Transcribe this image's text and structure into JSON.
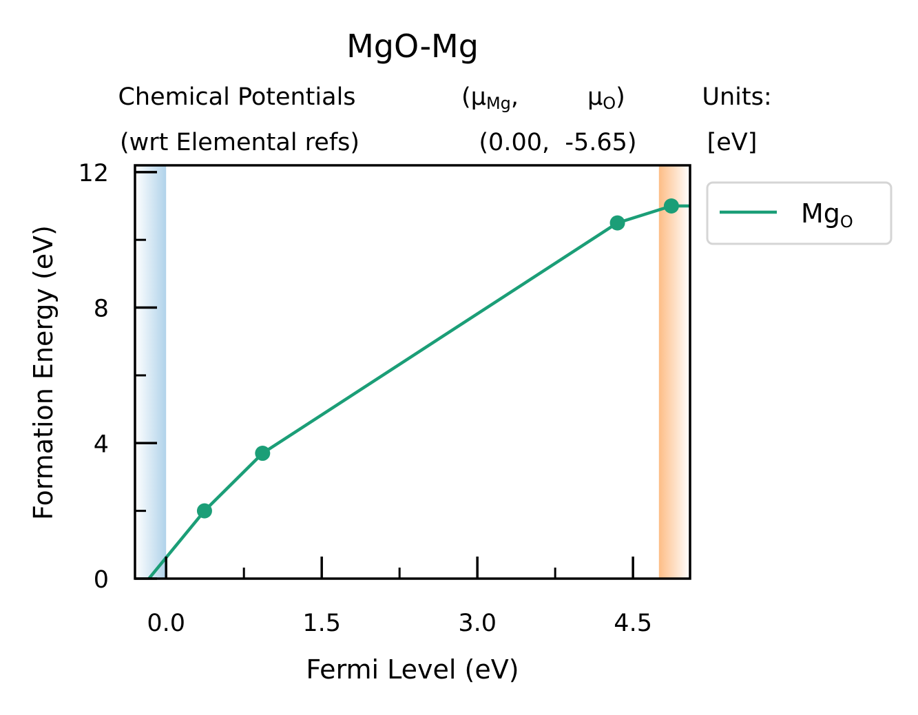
{
  "chart_data": {
    "type": "line",
    "title": "MgO-Mg",
    "header": {
      "left_line1": "Chemical Potentials",
      "left_line2": "(wrt Elemental refs)",
      "mu1_symbol": "μ",
      "mu1_sub": "Mg",
      "mu1_suffix": ",",
      "mu2_symbol": "μ",
      "mu2_sub": "O",
      "mu2_suffix": ")",
      "mu_open": "(",
      "values_line": "(0.00,  -5.65)",
      "units_line1": "Units:",
      "units_line2": "[eV]"
    },
    "xlabel": "Fermi Level (eV)",
    "ylabel": "Formation Energy (eV)",
    "xlim": [
      -0.3,
      5.05
    ],
    "ylim": [
      0,
      12.2
    ],
    "x_ticks": [
      {
        "value": 0.0,
        "label": "0.0"
      },
      {
        "value": 1.5,
        "label": "1.5"
      },
      {
        "value": 3.0,
        "label": "3.0"
      },
      {
        "value": 4.5,
        "label": "4.5"
      }
    ],
    "x_minor_ticks": [
      0.75,
      2.25,
      3.75
    ],
    "y_ticks": [
      {
        "value": 0,
        "label": "0"
      },
      {
        "value": 4,
        "label": "4"
      },
      {
        "value": 8,
        "label": "8"
      },
      {
        "value": 12,
        "label": "12"
      }
    ],
    "y_minor_ticks": [
      2,
      6,
      10
    ],
    "regions": [
      {
        "name": "valence-band",
        "x0": -0.3,
        "x1": 0.0,
        "color_inner": "#b0d2ea",
        "color_outer": "#ffffff"
      },
      {
        "name": "conduction-band",
        "x0": 4.75,
        "x1": 5.05,
        "color_inner": "#fdbd86",
        "color_outer": "#ffffff"
      }
    ],
    "series": [
      {
        "name": "Mg",
        "name_sub": "O",
        "color": "#1b9e77",
        "x": [
          -0.3,
          0.37,
          0.93,
          4.35,
          4.87,
          5.05
        ],
        "y": [
          -0.5,
          2.0,
          3.7,
          10.5,
          11.0,
          11.0
        ],
        "markers": [
          {
            "x": 0.37,
            "y": 2.0
          },
          {
            "x": 0.93,
            "y": 3.7
          },
          {
            "x": 4.35,
            "y": 10.5
          },
          {
            "x": 4.87,
            "y": 11.0
          }
        ]
      }
    ],
    "legend": "outside-right-top",
    "grid": false
  }
}
